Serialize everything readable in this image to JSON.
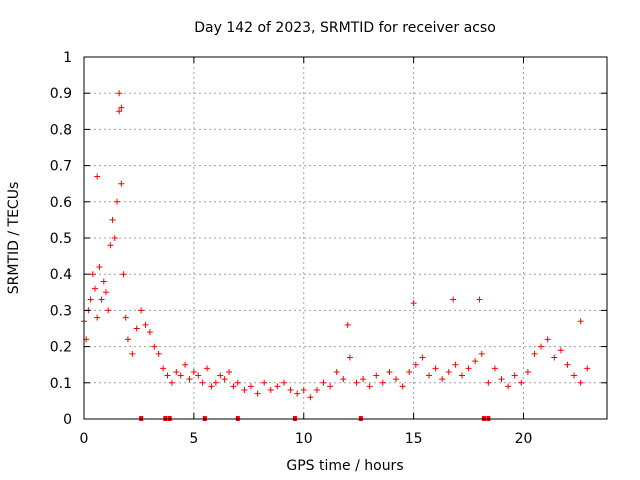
{
  "chart_data": {
    "type": "scatter",
    "title": "Day 142 of 2023, SRMTID for receiver acso",
    "xlabel": "GPS time / hours",
    "ylabel": "SRMTID / TECUs",
    "xlim": [
      0,
      23.8
    ],
    "ylim": [
      0,
      1
    ],
    "xticks": [
      "0",
      "5",
      "10",
      "15",
      "20"
    ],
    "xtick_values": [
      0,
      5,
      10,
      15,
      20
    ],
    "yticks": [
      "0",
      "0.1",
      "0.2",
      "0.3",
      "0.4",
      "0.5",
      "0.6",
      "0.7",
      "0.8",
      "0.9",
      "1"
    ],
    "ytick_values": [
      0,
      0.1,
      0.2,
      0.3,
      0.4,
      0.5,
      0.6,
      0.7,
      0.8,
      0.9,
      1.0
    ],
    "grid": true,
    "marker": "plus",
    "series_color": "#ff0000",
    "series": [
      {
        "name": "SRMTID",
        "x": [
          0.0,
          0.1,
          0.2,
          0.3,
          0.4,
          0.5,
          0.6,
          0.7,
          0.8,
          0.9,
          1.0,
          1.1,
          1.2,
          1.3,
          1.4,
          1.5,
          1.6,
          1.7,
          1.8,
          1.9,
          2.0,
          2.2,
          2.4,
          2.6,
          2.8,
          3.0,
          3.2,
          3.4,
          3.6,
          3.8,
          4.0,
          4.2,
          4.4,
          4.6,
          4.8,
          5.0,
          5.2,
          5.4,
          5.6,
          5.8,
          6.0,
          6.2,
          6.4,
          6.6,
          6.8,
          7.0,
          7.3,
          7.6,
          7.9,
          8.2,
          8.5,
          8.8,
          9.1,
          9.4,
          9.7,
          10.0,
          10.3,
          10.6,
          10.9,
          11.2,
          11.5,
          11.8,
          12.1,
          12.4,
          12.7,
          13.0,
          13.3,
          13.6,
          13.9,
          14.2,
          14.5,
          14.8,
          15.1,
          15.4,
          15.7,
          16.0,
          16.3,
          16.6,
          16.9,
          17.2,
          17.5,
          17.8,
          18.1,
          18.4,
          18.7,
          19.0,
          19.3,
          19.6,
          19.9,
          20.2,
          20.5,
          20.8,
          21.1,
          21.4,
          21.7,
          22.0,
          22.3,
          22.6,
          22.9
        ],
        "values": [
          0.27,
          0.22,
          0.3,
          0.33,
          0.4,
          0.36,
          0.28,
          0.42,
          0.33,
          0.38,
          0.35,
          0.3,
          0.48,
          0.55,
          0.5,
          0.6,
          0.85,
          0.65,
          0.4,
          0.28,
          0.22,
          0.18,
          0.25,
          0.3,
          0.26,
          0.24,
          0.2,
          0.18,
          0.14,
          0.12,
          0.1,
          0.13,
          0.12,
          0.15,
          0.11,
          0.13,
          0.12,
          0.1,
          0.14,
          0.09,
          0.1,
          0.12,
          0.11,
          0.13,
          0.09,
          0.1,
          0.08,
          0.09,
          0.07,
          0.1,
          0.08,
          0.09,
          0.1,
          0.08,
          0.07,
          0.08,
          0.06,
          0.08,
          0.1,
          0.09,
          0.13,
          0.11,
          0.17,
          0.1,
          0.11,
          0.09,
          0.12,
          0.1,
          0.13,
          0.11,
          0.09,
          0.13,
          0.15,
          0.17,
          0.12,
          0.14,
          0.11,
          0.13,
          0.15,
          0.12,
          0.14,
          0.16,
          0.18,
          0.1,
          0.14,
          0.11,
          0.09,
          0.12,
          0.1,
          0.13,
          0.18,
          0.2,
          0.22,
          0.17,
          0.19,
          0.15,
          0.12,
          0.1,
          0.14
        ],
        "maxima": [
          {
            "x": 1.6,
            "value": 0.9
          },
          {
            "x": 1.7,
            "value": 0.86
          },
          {
            "x": 0.6,
            "value": 0.67
          },
          {
            "x": 15.0,
            "value": 0.32
          },
          {
            "x": 16.8,
            "value": 0.33
          },
          {
            "x": 18.0,
            "value": 0.33
          },
          {
            "x": 12.0,
            "value": 0.26
          },
          {
            "x": 22.6,
            "value": 0.27
          }
        ]
      }
    ],
    "baseline_markers_x": [
      2.6,
      3.7,
      3.9,
      5.5,
      7.0,
      9.6,
      12.6,
      18.2,
      18.4
    ]
  }
}
